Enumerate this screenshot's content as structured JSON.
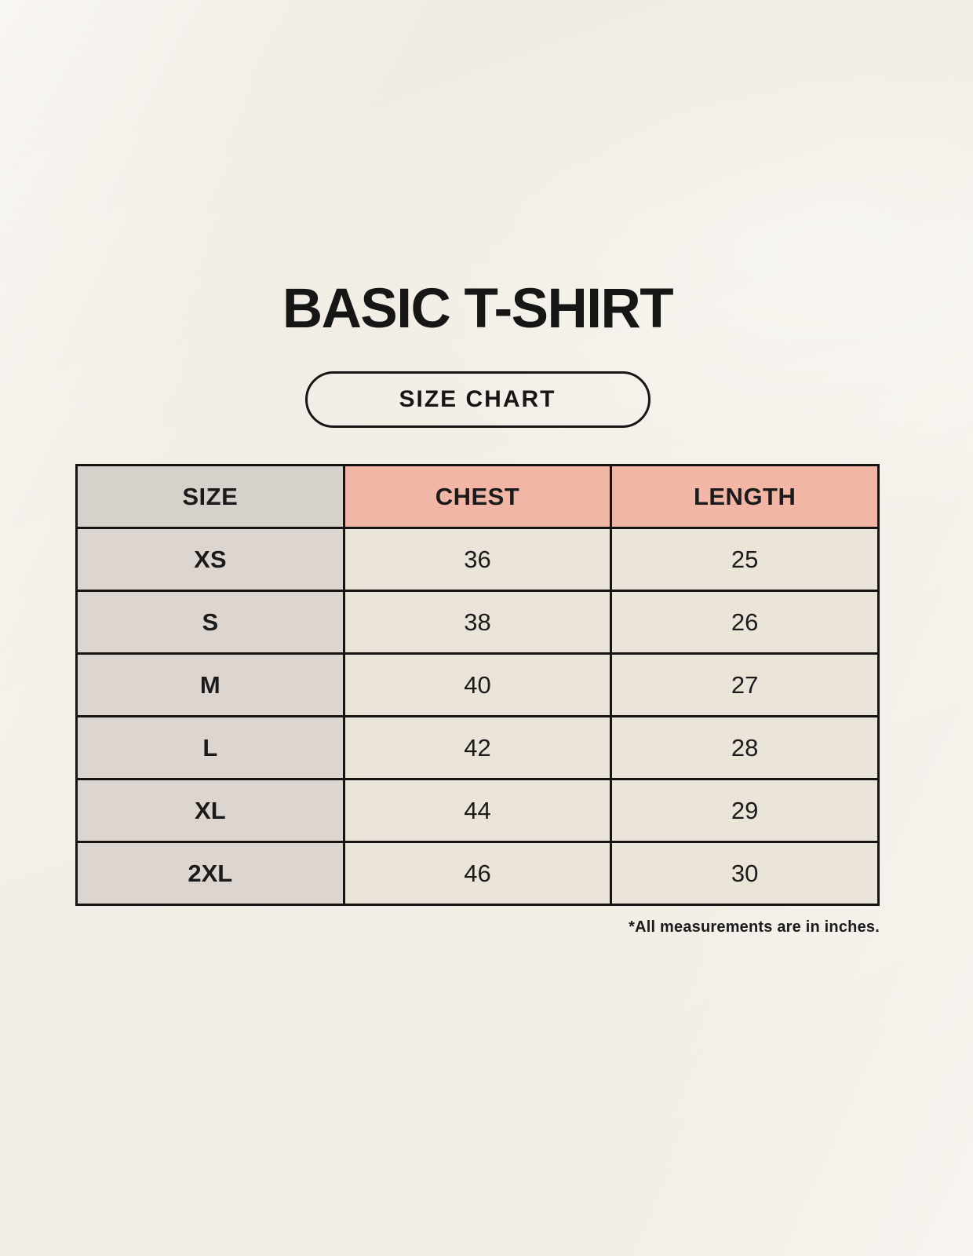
{
  "page": {
    "title": "BASIC T-SHIRT",
    "size_chart_button_label": "SIZE CHART",
    "footnote": "*All measurements are in inches."
  },
  "chart_data": {
    "type": "table",
    "title": "BASIC T-SHIRT size chart",
    "columns": [
      "SIZE",
      "CHEST",
      "LENGTH"
    ],
    "rows": [
      {
        "size": "XS",
        "chest": "36",
        "length": "25"
      },
      {
        "size": "S",
        "chest": "38",
        "length": "26"
      },
      {
        "size": "M",
        "chest": "40",
        "length": "27"
      },
      {
        "size": "L",
        "chest": "42",
        "length": "28"
      },
      {
        "size": "XL",
        "chest": "44",
        "length": "29"
      },
      {
        "size": "2XL",
        "chest": "46",
        "length": "30"
      }
    ],
    "units": "inches"
  },
  "colors": {
    "background": "#f4f0e9",
    "size_column_header_bg": "#d7d1cb",
    "size_column_cell_bg": "#ddd6d0",
    "accent_header_bg": "#f1b6a5",
    "value_cell_bg": "#eae4d9",
    "border": "#141414",
    "text": "#1b1b1b"
  }
}
